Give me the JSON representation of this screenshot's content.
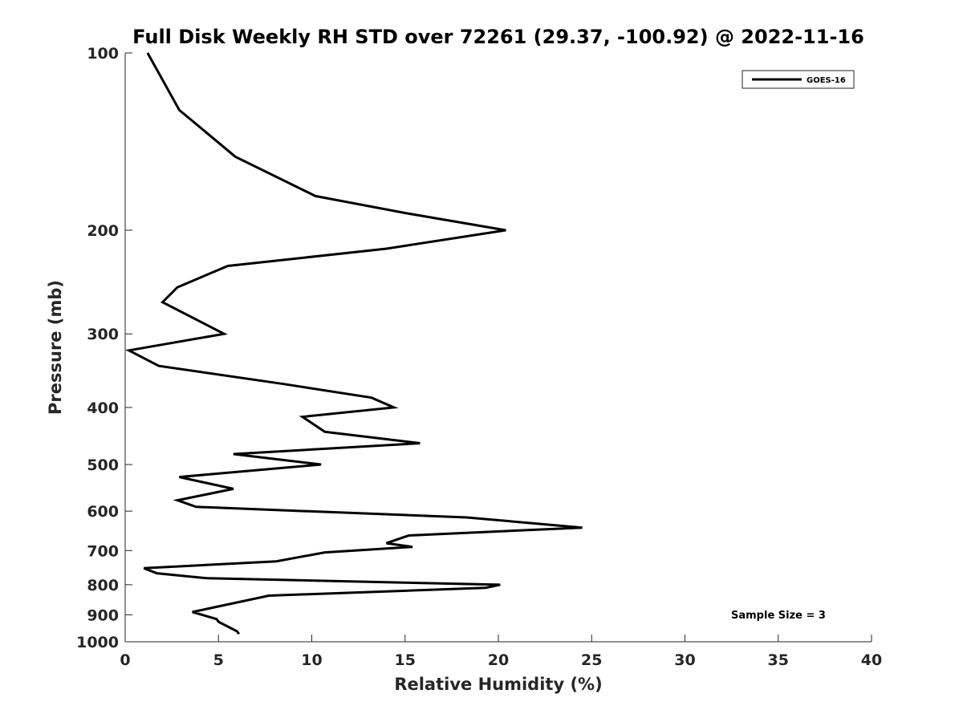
{
  "chart_data": {
    "type": "line",
    "title": "Full Disk Weekly RH STD over 72261 (29.37, -100.92) @ 2022-11-16",
    "xlabel": "Relative Humidity (%)",
    "ylabel": "Pressure (mb)",
    "xlim": [
      0,
      40
    ],
    "ylim": [
      100,
      1000
    ],
    "yscale": "log",
    "yaxis_inverted": true,
    "xticks": [
      0,
      5,
      10,
      15,
      20,
      25,
      30,
      35,
      40
    ],
    "yticks": [
      100,
      200,
      300,
      400,
      500,
      600,
      700,
      800,
      900,
      1000
    ],
    "grid": false,
    "legend_position": "top-right",
    "annotation": "Sample Size = 3",
    "line_color": "#000000",
    "series": [
      {
        "name": "GOES-16",
        "x": [
          1.2,
          2.9,
          5.9,
          10.2,
          15.0,
          20.4,
          14.0,
          5.5,
          2.8,
          2.0,
          5.3,
          0.2,
          1.8,
          8.5,
          13.2,
          14.4,
          9.5,
          10.7,
          15.8,
          5.8,
          10.5,
          2.9,
          5.8,
          2.8,
          3.8,
          18.3,
          24.5,
          15.2,
          14.0,
          15.4,
          10.7,
          8.1,
          1.0,
          1.7,
          4.4,
          20.1,
          19.3,
          7.7,
          3.6,
          4.9,
          5.0,
          6.0,
          6.1
        ],
        "p": [
          100,
          125,
          150,
          175,
          187,
          200,
          215,
          230,
          250,
          265,
          300,
          320,
          340,
          365,
          385,
          400,
          415,
          440,
          460,
          480,
          500,
          525,
          550,
          575,
          590,
          615,
          640,
          660,
          680,
          690,
          705,
          730,
          750,
          765,
          780,
          800,
          810,
          835,
          890,
          915,
          925,
          960,
          970
        ]
      }
    ]
  }
}
